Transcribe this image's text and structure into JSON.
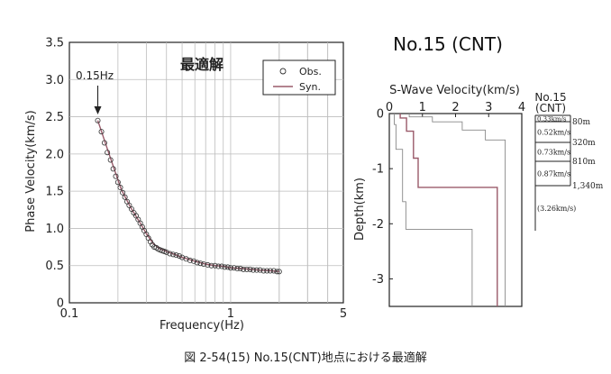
{
  "header": {
    "title": "No.15 (CNT)"
  },
  "caption": "図 2-54(15)  No.15(CNT)地点における最適解",
  "chart_data": [
    {
      "type": "scatter",
      "annotation_optimal": "最適解",
      "xlabel": "Frequency(Hz)",
      "ylabel": "Phase Velocity(km/s)",
      "xscale": "log",
      "xlim": [
        0.1,
        5
      ],
      "ylim": [
        0,
        3.5
      ],
      "xticks": [
        "0.1",
        "1",
        "5"
      ],
      "yticks": [
        "0",
        "0.5",
        "1.0",
        "1.5",
        "2.0",
        "2.5",
        "3.0",
        "3.5"
      ],
      "grid": true,
      "legend": {
        "position": "top-right",
        "items": [
          "Obs.",
          "Syn."
        ]
      },
      "arrow_label": "0.15Hz",
      "arrow_x": 0.15,
      "series": [
        {
          "name": "Obs.",
          "marker": "open-circle",
          "color": "#333333",
          "x": [
            0.15,
            0.158,
            0.165,
            0.172,
            0.18,
            0.187,
            0.194,
            0.2,
            0.207,
            0.214,
            0.221,
            0.228,
            0.235,
            0.243,
            0.251,
            0.259,
            0.267,
            0.275,
            0.283,
            0.291,
            0.3,
            0.309,
            0.318,
            0.327,
            0.336,
            0.346,
            0.356,
            0.366,
            0.377,
            0.388,
            0.4,
            0.42,
            0.44,
            0.46,
            0.48,
            0.5,
            0.53,
            0.56,
            0.59,
            0.62,
            0.65,
            0.68,
            0.72,
            0.76,
            0.8,
            0.84,
            0.88,
            0.92,
            0.96,
            1.0,
            1.05,
            1.1,
            1.15,
            1.2,
            1.26,
            1.32,
            1.38,
            1.45,
            1.52,
            1.6,
            1.68,
            1.76,
            1.85,
            1.94,
            2.0
          ],
          "y": [
            2.45,
            2.3,
            2.15,
            2.02,
            1.92,
            1.8,
            1.7,
            1.62,
            1.55,
            1.48,
            1.42,
            1.36,
            1.31,
            1.26,
            1.21,
            1.17,
            1.12,
            1.07,
            1.02,
            0.97,
            0.92,
            0.87,
            0.82,
            0.78,
            0.75,
            0.74,
            0.72,
            0.71,
            0.7,
            0.69,
            0.68,
            0.66,
            0.65,
            0.64,
            0.63,
            0.61,
            0.59,
            0.57,
            0.56,
            0.54,
            0.53,
            0.52,
            0.51,
            0.5,
            0.5,
            0.49,
            0.49,
            0.48,
            0.48,
            0.47,
            0.47,
            0.46,
            0.46,
            0.45,
            0.45,
            0.45,
            0.44,
            0.44,
            0.44,
            0.43,
            0.43,
            0.43,
            0.43,
            0.42,
            0.42
          ]
        },
        {
          "name": "Syn.",
          "marker": "line",
          "color": "#9a5a6a",
          "x": [
            0.15,
            0.18,
            0.21,
            0.24,
            0.27,
            0.3,
            0.33,
            0.36,
            0.4,
            0.45,
            0.5,
            0.6,
            0.7,
            0.8,
            0.9,
            1.0,
            1.2,
            1.5,
            1.8,
            2.0
          ],
          "y": [
            2.45,
            1.94,
            1.52,
            1.28,
            1.1,
            0.93,
            0.8,
            0.73,
            0.69,
            0.65,
            0.61,
            0.56,
            0.52,
            0.5,
            0.49,
            0.47,
            0.46,
            0.44,
            0.43,
            0.42
          ]
        }
      ]
    },
    {
      "type": "line",
      "title": "S-Wave Velocity(km/s)",
      "ylabel": "Depth(km)",
      "xlim": [
        0,
        4
      ],
      "ylim": [
        -3.5,
        0
      ],
      "xticks": [
        "0",
        "1",
        "2",
        "3",
        "4"
      ],
      "yticks": [
        "0",
        "-1",
        "-2",
        "-3"
      ],
      "grid": false,
      "series": [
        {
          "name": "optimal",
          "color": "#9a5a6a",
          "steps": [
            [
              0.33,
              0,
              0.08
            ],
            [
              0.52,
              0.08,
              0.32
            ],
            [
              0.73,
              0.32,
              0.81
            ],
            [
              0.87,
              0.81,
              1.34
            ],
            [
              3.26,
              1.34,
              3.5
            ]
          ]
        },
        {
          "name": "lower",
          "color": "#888888",
          "steps": [
            [
              0.15,
              0,
              0.2
            ],
            [
              0.2,
              0.2,
              0.65
            ],
            [
              0.4,
              0.65,
              1.6
            ],
            [
              0.5,
              1.6,
              2.1
            ],
            [
              2.5,
              2.1,
              3.5
            ]
          ]
        },
        {
          "name": "upper",
          "color": "#888888",
          "steps": [
            [
              0.6,
              0,
              0.06
            ],
            [
              1.3,
              0.06,
              0.15
            ],
            [
              2.2,
              0.15,
              0.3
            ],
            [
              2.9,
              0.3,
              0.48
            ],
            [
              3.5,
              0.48,
              3.5
            ]
          ]
        }
      ]
    }
  ],
  "layer_table": {
    "title_line1": "No.15",
    "title_line2": "(CNT)",
    "layers": [
      {
        "velocity": "0.33km/s",
        "bottom": "80m"
      },
      {
        "velocity": "0.52km/s",
        "bottom": "320m"
      },
      {
        "velocity": "0.73km/s",
        "bottom": "810m"
      },
      {
        "velocity": "0.87km/s",
        "bottom": "1,340m"
      },
      {
        "velocity": "(3.26km/s)",
        "bottom": ""
      }
    ]
  }
}
